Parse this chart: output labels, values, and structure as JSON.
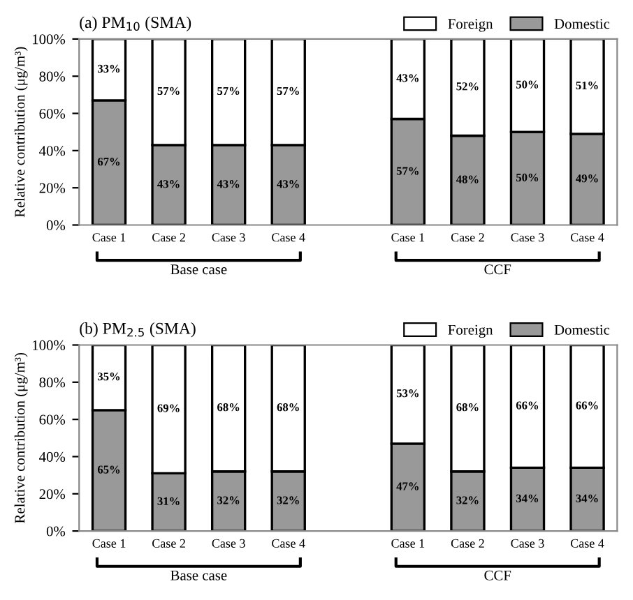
{
  "chart_data": [
    {
      "type": "bar",
      "title": "(a) PM$_{10}$ (SMA)",
      "ylabel": "Relative contribution (μg/m³)",
      "stacked": true,
      "legend": "top right",
      "grid": false,
      "categories": [
        "Case 1",
        "Case 2",
        "Case 3",
        "Case 4",
        null,
        "Case 1",
        "Case 2",
        "Case 3",
        "Case 4"
      ],
      "series": [
        {
          "name": "Domestic",
          "color": "#999999",
          "values": [
            67,
            43,
            43,
            43,
            null,
            57,
            48,
            50,
            49
          ],
          "value_labels": [
            "67%",
            "43%",
            "43%",
            "43%",
            null,
            "57%",
            "48%",
            "50%",
            "49%"
          ]
        },
        {
          "name": "Foreign",
          "color": "#ffffff",
          "values": [
            33,
            57,
            57,
            57,
            null,
            43,
            52,
            50,
            51
          ],
          "value_labels": [
            "33%",
            "57%",
            "57%",
            "57%",
            null,
            "43%",
            "52%",
            "50%",
            "51%"
          ]
        }
      ],
      "ylim": [
        0,
        100
      ],
      "yticks": [
        {
          "value": 0,
          "label": "0%"
        },
        {
          "value": 20,
          "label": "20%"
        },
        {
          "value": 40,
          "label": "40%"
        },
        {
          "value": 60,
          "label": "60%"
        },
        {
          "value": 80,
          "label": "80%"
        },
        {
          "value": 100,
          "label": "100%"
        }
      ],
      "annotations": [
        "Base case",
        "CCF"
      ]
    },
    {
      "type": "bar",
      "title": "(b) PM$_{2.5}$ (SMA)",
      "ylabel": "Relative contribution (μg/m³)",
      "stacked": true,
      "legend": "top right",
      "grid": false,
      "categories": [
        "Case 1",
        "Case 2",
        "Case 3",
        "Case 4",
        null,
        "Case 1",
        "Case 2",
        "Case 3",
        "Case 4"
      ],
      "series": [
        {
          "name": "Domestic",
          "color": "#999999",
          "values": [
            65,
            31,
            32,
            32,
            null,
            47,
            32,
            34,
            34
          ],
          "value_labels": [
            "65%",
            "31%",
            "32%",
            "32%",
            null,
            "47%",
            "32%",
            "34%",
            "34%"
          ]
        },
        {
          "name": "Foreign",
          "color": "#ffffff",
          "values": [
            35,
            69,
            68,
            68,
            null,
            53,
            68,
            66,
            66
          ],
          "value_labels": [
            "35%",
            "69%",
            "68%",
            "68%",
            null,
            "53%",
            "68%",
            "66%",
            "66%"
          ]
        }
      ],
      "ylim": [
        0,
        100
      ],
      "yticks": [
        {
          "value": 0,
          "label": "0%"
        },
        {
          "value": 20,
          "label": "20%"
        },
        {
          "value": 40,
          "label": "40%"
        },
        {
          "value": 60,
          "label": "60%"
        },
        {
          "value": 80,
          "label": "80%"
        },
        {
          "value": 100,
          "label": "100%"
        }
      ],
      "annotations": [
        "Base case",
        "CCF"
      ]
    }
  ]
}
